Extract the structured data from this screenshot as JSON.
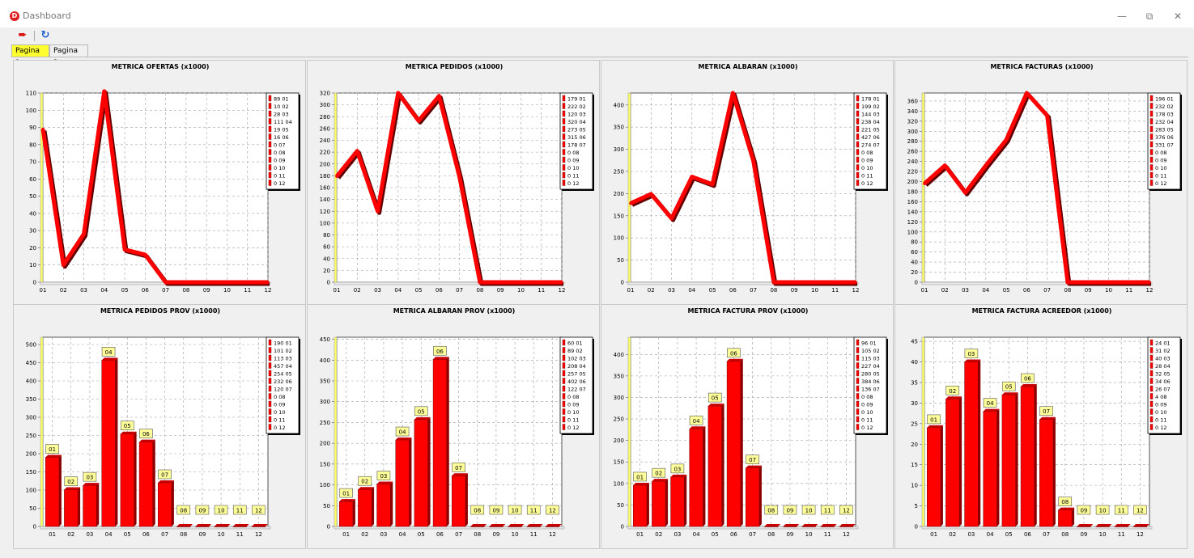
{
  "window": {
    "title": "Dashboard",
    "icon_letter": "D",
    "controls": [
      "minimize-icon",
      "restore-icon",
      "close-icon"
    ]
  },
  "toolbar": {
    "buttons": [
      "exit-icon",
      "refresh-icon"
    ]
  },
  "tabs": [
    {
      "label": "Pagina 1",
      "active": true
    },
    {
      "label": "Pagina 2",
      "active": false
    }
  ],
  "colors": {
    "series": "#ff0000",
    "label_bg": "#ffff99",
    "active_tab": "#ffff30",
    "left_wall": "#ffff66"
  },
  "chart_data": [
    {
      "type": "line",
      "title": "METRICA OFERTAS (x1000)",
      "categories": [
        "01",
        "02",
        "03",
        "04",
        "05",
        "06",
        "07",
        "08",
        "09",
        "10",
        "11",
        "12"
      ],
      "values": [
        89,
        10,
        28,
        111,
        19,
        16,
        0,
        0,
        0,
        0,
        0,
        0
      ],
      "ylim": [
        0,
        110
      ],
      "yticks": [
        0,
        10,
        20,
        30,
        40,
        50,
        60,
        70,
        80,
        90,
        100,
        110
      ],
      "legend": [
        "89 01",
        "10 02",
        "28 03",
        "111 04",
        "19 05",
        "16 06",
        "0 07",
        "0 08",
        "0 09",
        "0 10",
        "0 11",
        "0 12"
      ],
      "grid": true,
      "legend_position": "right"
    },
    {
      "type": "line",
      "title": "METRICA PEDIDOS (x1000)",
      "categories": [
        "01",
        "02",
        "03",
        "04",
        "05",
        "06",
        "07",
        "08",
        "09",
        "10",
        "11",
        "12"
      ],
      "values": [
        179,
        222,
        120,
        320,
        273,
        315,
        178,
        0,
        0,
        0,
        0,
        0
      ],
      "ylim": [
        0,
        320
      ],
      "yticks": [
        0,
        20,
        40,
        60,
        80,
        100,
        120,
        140,
        160,
        180,
        200,
        220,
        240,
        260,
        280,
        300,
        320
      ],
      "legend": [
        "179 01",
        "222 02",
        "120 03",
        "320 04",
        "273 05",
        "315 06",
        "178 07",
        "0 08",
        "0 09",
        "0 10",
        "0 11",
        "0 12"
      ],
      "grid": true,
      "legend_position": "right"
    },
    {
      "type": "line",
      "title": "METRICA ALBARAN (x1000)",
      "categories": [
        "01",
        "02",
        "03",
        "04",
        "05",
        "06",
        "07",
        "08",
        "09",
        "10",
        "11",
        "12"
      ],
      "values": [
        178,
        199,
        144,
        238,
        221,
        427,
        274,
        0,
        0,
        0,
        0,
        0
      ],
      "ylim": [
        0,
        427
      ],
      "yticks": [
        0,
        50,
        100,
        150,
        200,
        250,
        300,
        350,
        400
      ],
      "legend": [
        "178 01",
        "199 02",
        "144 03",
        "238 04",
        "221 05",
        "427 06",
        "274 07",
        "0 08",
        "0 09",
        "0 10",
        "0 11",
        "0 12"
      ],
      "grid": true,
      "legend_position": "right"
    },
    {
      "type": "line",
      "title": "METRICA FACTURAS (x1000)",
      "categories": [
        "01",
        "02",
        "03",
        "04",
        "05",
        "06",
        "07",
        "08",
        "09",
        "10",
        "11",
        "12"
      ],
      "values": [
        196,
        232,
        178,
        232,
        283,
        376,
        331,
        0,
        0,
        0,
        0,
        0
      ],
      "ylim": [
        0,
        376
      ],
      "yticks": [
        0,
        20,
        40,
        60,
        80,
        100,
        120,
        140,
        160,
        180,
        200,
        220,
        240,
        260,
        280,
        300,
        320,
        340,
        360
      ],
      "legend": [
        "196 01",
        "232 02",
        "178 03",
        "232 04",
        "283 05",
        "376 06",
        "331 07",
        "0 08",
        "0 09",
        "0 10",
        "0 11",
        "0 12"
      ],
      "grid": true,
      "legend_position": "right"
    },
    {
      "type": "bar",
      "title": "METRICA PEDIDOS PROV (x1000)",
      "categories": [
        "01",
        "02",
        "03",
        "04",
        "05",
        "06",
        "07",
        "08",
        "09",
        "10",
        "11",
        "12"
      ],
      "values": [
        190,
        101,
        113,
        457,
        254,
        232,
        120,
        0,
        0,
        0,
        0,
        0
      ],
      "ylim": [
        0,
        520
      ],
      "yticks": [
        0,
        50,
        100,
        150,
        200,
        250,
        300,
        350,
        400,
        450,
        500
      ],
      "legend": [
        "190 01",
        "101 02",
        "113 03",
        "457 04",
        "254 05",
        "232 06",
        "120 07",
        "0 08",
        "0 09",
        "0 10",
        "0 11",
        "0 12"
      ],
      "grid": true,
      "legend_position": "right"
    },
    {
      "type": "bar",
      "title": "METRICA ALBARAN PROV (x1000)",
      "categories": [
        "01",
        "02",
        "03",
        "04",
        "05",
        "06",
        "07",
        "08",
        "09",
        "10",
        "11",
        "12"
      ],
      "values": [
        60,
        89,
        102,
        208,
        257,
        402,
        122,
        0,
        0,
        0,
        0,
        0
      ],
      "ylim": [
        0,
        455
      ],
      "yticks": [
        0,
        50,
        100,
        150,
        200,
        250,
        300,
        350,
        400,
        450
      ],
      "legend": [
        "60 01",
        "89 02",
        "102 03",
        "208 04",
        "257 05",
        "402 06",
        "122 07",
        "0 08",
        "0 09",
        "0 10",
        "0 11",
        "0 12"
      ],
      "grid": true,
      "legend_position": "right"
    },
    {
      "type": "bar",
      "title": "METRICA FACTURA PROV (x1000)",
      "categories": [
        "01",
        "02",
        "03",
        "04",
        "05",
        "06",
        "07",
        "08",
        "09",
        "10",
        "11",
        "12"
      ],
      "values": [
        96,
        105,
        115,
        227,
        280,
        384,
        136,
        0,
        0,
        0,
        0,
        0
      ],
      "ylim": [
        0,
        440
      ],
      "yticks": [
        0,
        50,
        100,
        150,
        200,
        250,
        300,
        350,
        400
      ],
      "legend": [
        "96 01",
        "105 02",
        "115 03",
        "227 04",
        "280 05",
        "384 06",
        "136 07",
        "0 08",
        "0 09",
        "0 10",
        "0 11",
        "0 12"
      ],
      "grid": true,
      "legend_position": "right"
    },
    {
      "type": "bar",
      "title": "METRICA FACTURA ACREEDOR (x1000)",
      "categories": [
        "01",
        "02",
        "03",
        "04",
        "05",
        "06",
        "07",
        "08",
        "09",
        "10",
        "11",
        "12"
      ],
      "values": [
        24,
        31,
        40,
        28,
        32,
        34,
        26,
        4,
        0,
        0,
        0,
        0
      ],
      "ylim": [
        0,
        46
      ],
      "yticks": [
        0,
        5,
        10,
        15,
        20,
        25,
        30,
        35,
        40,
        45
      ],
      "legend": [
        "24 01",
        "31 02",
        "40 03",
        "28 04",
        "32 05",
        "34 06",
        "26 07",
        "4 08",
        "0 09",
        "0 10",
        "0 11",
        "0 12"
      ],
      "grid": true,
      "legend_position": "right"
    }
  ]
}
